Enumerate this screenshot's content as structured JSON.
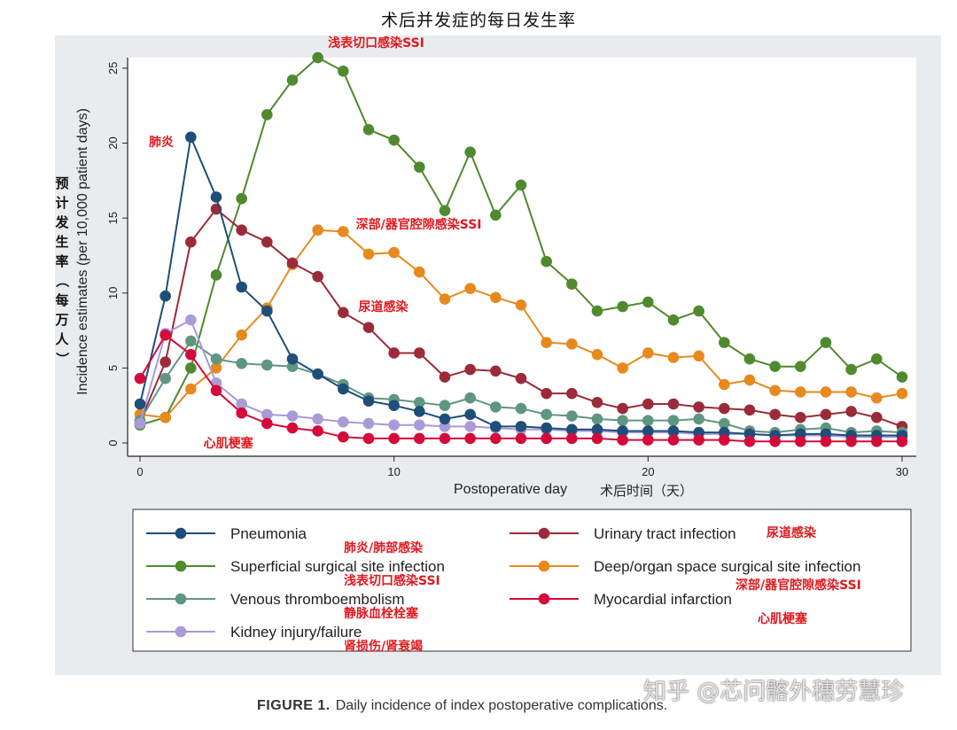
{
  "page_title": "术后并发症的每日发生率",
  "caption": {
    "label": "FIGURE 1.",
    "text": "Daily incidence of index postoperative complications."
  },
  "watermark": "知乎 @芯问髂外穗劳慧珍",
  "chart_data": {
    "type": "line",
    "xlabel": "Postoperative day",
    "xlabel_cn": "术后时间（天）",
    "ylabel": "Incidence estimates (per 10,000 patient days)",
    "ylabel_cn": "预计发生率（每万人）",
    "xlim": [
      0,
      30
    ],
    "ylim": [
      0,
      26
    ],
    "xticks": [
      0,
      10,
      20,
      30
    ],
    "yticks": [
      0,
      5,
      10,
      15,
      20,
      25
    ],
    "grid": false,
    "legend_position": "bottom",
    "x": [
      0,
      1,
      2,
      3,
      4,
      5,
      6,
      7,
      8,
      9,
      10,
      11,
      12,
      13,
      14,
      15,
      16,
      17,
      18,
      19,
      20,
      21,
      22,
      23,
      24,
      25,
      26,
      27,
      28,
      29,
      30
    ],
    "series": [
      {
        "name": "Pneumonia",
        "name_cn": "肺炎/肺部感染",
        "color": "#1f4e79",
        "values": [
          2.6,
          9.8,
          20.4,
          16.4,
          10.4,
          8.8,
          5.6,
          4.6,
          3.6,
          2.8,
          2.5,
          2.1,
          1.6,
          1.9,
          1.1,
          1.1,
          1.0,
          0.9,
          0.9,
          0.8,
          0.8,
          0.8,
          0.7,
          0.7,
          0.6,
          0.5,
          0.6,
          0.6,
          0.5,
          0.5,
          0.5
        ]
      },
      {
        "name": "Urinary tract infection",
        "name_cn": "尿道感染",
        "color": "#9b2b3a",
        "values": [
          1.4,
          5.4,
          13.4,
          15.6,
          14.2,
          13.4,
          12.0,
          11.1,
          8.7,
          7.7,
          6.0,
          6.0,
          4.4,
          4.9,
          4.8,
          4.3,
          3.3,
          3.3,
          2.7,
          2.3,
          2.6,
          2.6,
          2.4,
          2.3,
          2.2,
          1.9,
          1.7,
          1.9,
          2.1,
          1.7,
          1.1
        ]
      },
      {
        "name": "Superficial surgical site infection",
        "name_cn": "浅表切口感染SSI",
        "color": "#4f8a2f",
        "values": [
          1.2,
          1.7,
          5.0,
          11.2,
          16.3,
          21.9,
          24.2,
          25.7,
          24.8,
          20.9,
          20.2,
          18.4,
          15.5,
          19.4,
          15.2,
          17.2,
          12.1,
          10.6,
          8.8,
          9.1,
          9.4,
          8.2,
          8.8,
          6.7,
          5.6,
          5.1,
          5.1,
          6.7,
          4.9,
          5.6,
          4.4
        ]
      },
      {
        "name": "Deep/organ space surgical site infection",
        "name_cn": "深部/器官腔隙感染SSI",
        "color": "#e8891e",
        "values": [
          1.9,
          1.7,
          3.6,
          5.0,
          7.2,
          9.0,
          11.9,
          14.2,
          14.1,
          12.6,
          12.7,
          11.4,
          9.6,
          10.3,
          9.7,
          9.2,
          6.7,
          6.6,
          5.9,
          5.0,
          6.0,
          5.7,
          5.8,
          3.9,
          4.2,
          3.5,
          3.4,
          3.4,
          3.4,
          3.0,
          3.3
        ]
      },
      {
        "name": "Venous thromboembolism",
        "name_cn": "静脉血栓栓塞",
        "color": "#5f9680",
        "values": [
          1.5,
          4.3,
          6.8,
          5.6,
          5.3,
          5.2,
          5.1,
          4.6,
          3.9,
          3.0,
          2.9,
          2.7,
          2.5,
          3.0,
          2.4,
          2.3,
          1.9,
          1.8,
          1.6,
          1.5,
          1.5,
          1.5,
          1.6,
          1.3,
          0.8,
          0.7,
          0.9,
          1.0,
          0.7,
          0.8,
          0.7
        ]
      },
      {
        "name": "Myocardial infarction",
        "name_cn": "心肌梗塞",
        "color": "#d40a3a",
        "values": [
          4.3,
          7.2,
          5.9,
          3.5,
          2.0,
          1.3,
          1.0,
          0.8,
          0.4,
          0.3,
          0.3,
          0.3,
          0.3,
          0.3,
          0.3,
          0.3,
          0.3,
          0.3,
          0.3,
          0.2,
          0.2,
          0.2,
          0.2,
          0.2,
          0.1,
          0.1,
          0.1,
          0.1,
          0.1,
          0.1,
          0.1
        ]
      },
      {
        "name": "Kidney injury/failure",
        "name_cn": "肾损伤/肾衰竭",
        "color": "#a99ad8",
        "values": [
          1.3,
          7.3,
          8.2,
          4.0,
          2.6,
          1.9,
          1.8,
          1.6,
          1.4,
          1.3,
          1.2,
          1.2,
          1.1,
          1.1,
          1.0,
          0.9,
          0.9,
          0.8,
          0.8,
          0.7,
          0.7,
          0.7,
          0.6,
          0.6,
          0.6,
          0.5,
          0.5,
          0.5,
          0.4,
          0.4,
          0.4
        ]
      }
    ],
    "annotations": [
      {
        "text": "浅表切口感染SSI",
        "x": 7.4,
        "y": 26.4
      },
      {
        "text": "肺炎",
        "x": 0.35,
        "y": 19.8
      },
      {
        "text": "深部/器官腔隙感染SSI",
        "x": 8.5,
        "y": 14.3
      },
      {
        "text": "尿道感染",
        "x": 8.6,
        "y": 8.8
      },
      {
        "text": "心肌梗塞",
        "x": 2.5,
        "y": -0.3
      }
    ],
    "legend_order": [
      "Pneumonia",
      "Urinary tract infection",
      "Superficial surgical site infection",
      "Deep/organ space surgical site infection",
      "Venous thromboembolism",
      "Myocardial infarction",
      "Kidney injury/failure"
    ]
  }
}
